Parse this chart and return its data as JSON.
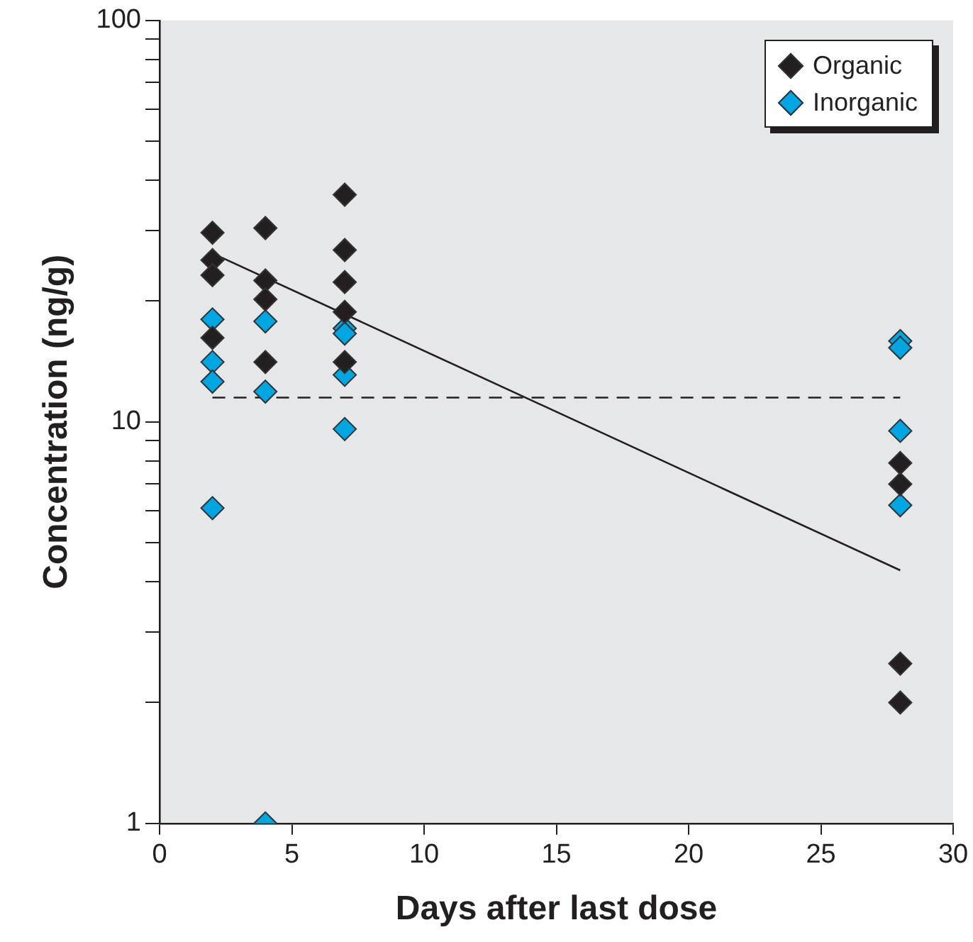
{
  "chart_data": {
    "type": "scatter",
    "xlabel": "Days after last dose",
    "ylabel": "Concentration (ng/g)",
    "xlim": [
      0,
      30
    ],
    "xticks": [
      0,
      5,
      10,
      15,
      20,
      25,
      30
    ],
    "ylim": [
      1,
      100
    ],
    "yticks": [
      1,
      {
        "value": 2,
        "label": null
      },
      {
        "value": 3,
        "label": null
      },
      {
        "value": 4,
        "label": null
      },
      {
        "value": 5,
        "label": null
      },
      {
        "value": 6,
        "label": null
      },
      {
        "value": 7,
        "label": null
      },
      {
        "value": 8,
        "label": null
      },
      {
        "value": 9,
        "label": null
      },
      10,
      {
        "value": 20,
        "label": null
      },
      {
        "value": 30,
        "label": null
      },
      {
        "value": 40,
        "label": null
      },
      {
        "value": 50,
        "label": null
      },
      {
        "value": 60,
        "label": null
      },
      {
        "value": 70,
        "label": null
      },
      {
        "value": 80,
        "label": null
      },
      {
        "value": 90,
        "label": null
      },
      100
    ],
    "log": "y",
    "grid": false,
    "legend": "top right",
    "marker": "diamond",
    "series": [
      {
        "name": "Organic",
        "color": "#231f20",
        "x": [
          2,
          2,
          2,
          2,
          4,
          4,
          4,
          4,
          7,
          7,
          7,
          7,
          7,
          28,
          28,
          28,
          28
        ],
        "values": [
          29.6,
          25.3,
          23.2,
          16.2,
          30.4,
          22.5,
          20.2,
          14.1,
          36.8,
          26.8,
          22.3,
          18.8,
          14.1,
          7.9,
          7.0,
          2.5,
          2.0
        ]
      },
      {
        "name": "Inorganic",
        "color": "#00a6e2",
        "x": [
          2,
          2,
          2,
          2,
          4,
          4,
          4,
          7,
          7,
          7,
          7,
          28,
          28,
          28,
          28
        ],
        "values": [
          18.0,
          14.1,
          12.6,
          6.1,
          17.8,
          11.9,
          1.0,
          17.1,
          16.6,
          13.1,
          9.6,
          15.9,
          15.3,
          9.5,
          6.2
        ]
      },
      {
        "type": "line",
        "color": "#231f20",
        "x": [
          2,
          28
        ],
        "values": [
          26.3,
          4.27
        ],
        "marker": "none",
        "line_style": "solid"
      },
      {
        "type": "line",
        "color": "#231f20",
        "x": [
          2,
          28
        ],
        "values": [
          11.5,
          11.5
        ],
        "marker": "none",
        "line_style": "dashed"
      }
    ]
  }
}
